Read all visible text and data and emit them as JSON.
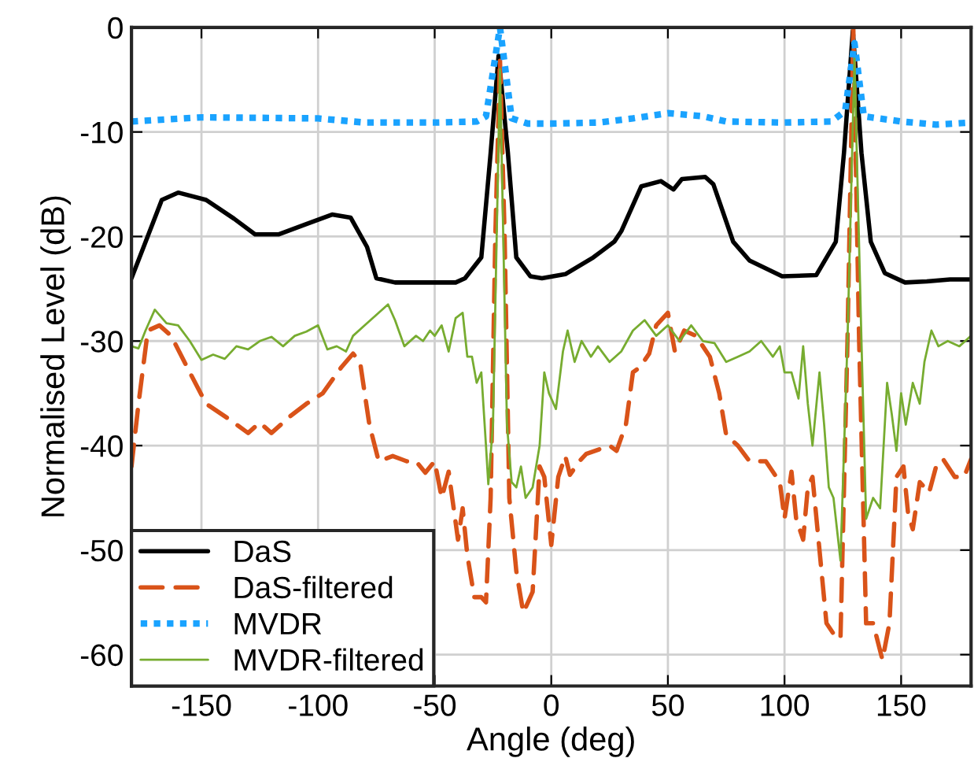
{
  "chart_data": {
    "type": "line",
    "xlabel": "Angle (deg)",
    "ylabel": "Normalised Level (dB)",
    "xlim": [
      -180,
      180
    ],
    "ylim": [
      -63,
      0
    ],
    "xticks": [
      -150,
      -100,
      -50,
      0,
      50,
      100,
      150
    ],
    "yticks": [
      -60,
      -50,
      -40,
      -30,
      -20,
      -10,
      0
    ],
    "grid": true,
    "legend": "bottom left",
    "series": [
      {
        "name": "DaS",
        "color": "#000000",
        "line_style": "solid",
        "x": [
          -180,
          -167,
          -160,
          -148,
          -136,
          -127,
          -117,
          -105,
          -94,
          -86,
          -79,
          -75,
          -67,
          -41,
          -37,
          -30,
          -26,
          -22.6,
          -18.6,
          -15,
          -9,
          -4,
          6,
          18,
          27,
          30,
          38.6,
          47,
          52.4,
          56,
          66,
          69.5,
          78,
          85,
          99,
          113.6,
          122,
          125.5,
          129.3,
          133,
          137,
          143,
          151.7,
          161,
          171,
          180
        ],
        "values": [
          -24,
          -16.5,
          -15.8,
          -16.5,
          -18.3,
          -19.8,
          -19.8,
          -18.8,
          -17.9,
          -18.2,
          -21,
          -24,
          -24.4,
          -24.4,
          -24,
          -22,
          -12,
          -2.7,
          -12,
          -22,
          -23.8,
          -24,
          -23.6,
          -22,
          -20.5,
          -19.5,
          -15.2,
          -14.7,
          -15.5,
          -14.5,
          -14.3,
          -15,
          -20.5,
          -22.3,
          -23.8,
          -23.7,
          -20.5,
          -12,
          -0.3,
          -12,
          -20.5,
          -23.5,
          -24.4,
          -24.3,
          -24.1,
          -24.1
        ]
      },
      {
        "name": "DaS-filtered",
        "color": "#d95319",
        "line_style": "dashed",
        "x": [
          -180,
          -177,
          -173,
          -168,
          -163,
          -155,
          -148,
          -138,
          -130,
          -125,
          -120,
          -112,
          -105,
          -98,
          -90,
          -85,
          -82,
          -78,
          -74,
          -68,
          -62,
          -58,
          -54,
          -50,
          -47,
          -44,
          -40,
          -38,
          -36,
          -33,
          -30,
          -28,
          -26,
          -24,
          -22,
          -20,
          -18,
          -15,
          -12,
          -8,
          -5,
          -3,
          0,
          3,
          6,
          8,
          12,
          15,
          25,
          28,
          32,
          35,
          38,
          42,
          45,
          50,
          53,
          57,
          62,
          68,
          72,
          75,
          80,
          85,
          92,
          98,
          100,
          103,
          105,
          108,
          110,
          112,
          115,
          118,
          121,
          124,
          127,
          129.5,
          132,
          135,
          138,
          142,
          145,
          148,
          151,
          153,
          155,
          158,
          162,
          165,
          168,
          173,
          177,
          180
        ],
        "values": [
          -42,
          -36,
          -29,
          -28.5,
          -29.5,
          -33,
          -36,
          -37.5,
          -38.8,
          -37.8,
          -38.8,
          -37.2,
          -36,
          -35,
          -32.5,
          -31.2,
          -32,
          -38,
          -41.5,
          -41,
          -41.5,
          -41.5,
          -42.6,
          -41.5,
          -45,
          -42.5,
          -49,
          -46,
          -50.5,
          -54.5,
          -54.5,
          -55,
          -45,
          -20,
          -3,
          -20,
          -45,
          -52,
          -56,
          -54,
          -42,
          -43,
          -49.5,
          -43,
          -41,
          -42.8,
          -41.5,
          -40.8,
          -40,
          -40.5,
          -38,
          -33,
          -32.5,
          -31.2,
          -28.5,
          -27.3,
          -31,
          -29,
          -29.5,
          -31.5,
          -35,
          -39,
          -40,
          -41.5,
          -41.5,
          -43.5,
          -47,
          -42.5,
          -47,
          -49,
          -44,
          -43,
          -50,
          -57,
          -58,
          -58.5,
          -30,
          0,
          -30,
          -57,
          -57,
          -60.5,
          -57,
          -43,
          -42,
          -46.5,
          -48,
          -43.5,
          -44.5,
          -42,
          -41.3,
          -43,
          -43,
          -41.3
        ]
      },
      {
        "name": "MVDR",
        "color": "#1aa3ff",
        "line_style": "dotted",
        "x": [
          -180,
          -150,
          -100,
          -80,
          -50,
          -32,
          -28,
          -22,
          -17,
          -10,
          0,
          20,
          35,
          50,
          65,
          75,
          100,
          120,
          126,
          130,
          134,
          150,
          165,
          180
        ],
        "values": [
          -9,
          -8.6,
          -8.7,
          -9.1,
          -9.1,
          -9,
          -8.5,
          0,
          -8.7,
          -9.2,
          -9.2,
          -9.1,
          -8.7,
          -8.2,
          -8.5,
          -9,
          -9.1,
          -9,
          -8,
          -1.5,
          -8.5,
          -9,
          -9.3,
          -9.1
        ]
      },
      {
        "name": "MVDR-filtered",
        "color": "#77ac30",
        "line_style": "solid",
        "x": [
          -180,
          -177,
          -174,
          -170,
          -165,
          -160,
          -155,
          -150,
          -145,
          -140,
          -135,
          -130,
          -125,
          -120,
          -115,
          -110,
          -105,
          -100,
          -96,
          -92,
          -88,
          -85,
          -80,
          -75,
          -70,
          -67,
          -63,
          -58,
          -55,
          -52,
          -50,
          -47,
          -44,
          -41,
          -38,
          -36,
          -34,
          -32,
          -30,
          -28,
          -27,
          -25,
          -22,
          -19,
          -17,
          -15,
          -13,
          -11,
          -8,
          -5,
          -3,
          -1,
          2,
          5,
          7,
          10,
          13,
          17,
          20,
          25,
          30,
          35,
          40,
          45,
          50,
          55,
          60,
          65,
          70,
          75,
          80,
          85,
          90,
          95,
          98,
          100,
          103,
          106,
          108,
          110,
          112,
          115,
          117,
          119,
          121,
          124,
          127,
          130,
          133,
          135,
          138,
          141,
          144,
          146,
          148,
          150,
          152,
          155,
          158,
          160,
          163,
          166,
          170,
          175,
          180
        ],
        "values": [
          -30.5,
          -30.7,
          -29,
          -27,
          -28.3,
          -28.5,
          -30,
          -31.8,
          -31.3,
          -31.7,
          -30.5,
          -30.8,
          -30,
          -29.6,
          -30.5,
          -29.5,
          -29.1,
          -28.5,
          -30.8,
          -30.5,
          -31,
          -29.5,
          -28.5,
          -27.5,
          -26.5,
          -28,
          -30.5,
          -29.5,
          -30,
          -29,
          -29.5,
          -28.5,
          -31,
          -27.8,
          -27.3,
          -31.5,
          -31.5,
          -34,
          -33,
          -40,
          -43.7,
          -38,
          -4,
          -38,
          -43.5,
          -44,
          -42,
          -45,
          -44,
          -40,
          -33,
          -35,
          -36.5,
          -31,
          -29,
          -32,
          -30,
          -31.5,
          -30.5,
          -32,
          -31,
          -29,
          -28,
          -29.5,
          -28.5,
          -30,
          -28.5,
          -30,
          -30.2,
          -32,
          -31.5,
          -31,
          -30,
          -31.5,
          -30.5,
          -33,
          -33,
          -35.5,
          -30.5,
          -36,
          -40,
          -33,
          -38,
          -44,
          -45,
          -51,
          -30,
          -3,
          -30,
          -47,
          -45,
          -46,
          -34,
          -37,
          -40.5,
          -35,
          -38,
          -34,
          -36,
          -32,
          -29,
          -30.5,
          -30,
          -30.5,
          -29.5
        ]
      }
    ]
  }
}
